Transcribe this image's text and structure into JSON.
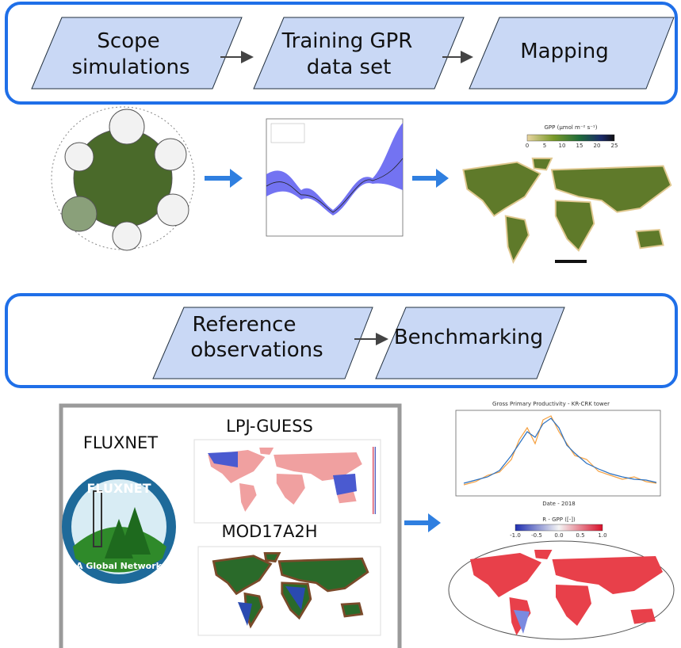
{
  "top_flow": {
    "steps": [
      {
        "lines": [
          "Scope",
          "simulations"
        ]
      },
      {
        "lines": [
          "Training GPR",
          "data set"
        ]
      },
      {
        "lines": [
          "Mapping"
        ]
      }
    ]
  },
  "bottom_flow": {
    "steps": [
      {
        "lines": [
          "Reference",
          "observations"
        ]
      },
      {
        "lines": [
          "Benchmarking"
        ]
      }
    ]
  },
  "gpp_map": {
    "colorbar_title": "GPP (μmol m⁻² s⁻¹)",
    "colorbar_ticks": [
      "0",
      "5",
      "10",
      "15",
      "20",
      "25"
    ]
  },
  "reference_panel": {
    "fluxnet_label": "FLUXNET",
    "logo_title": "FLUXNET",
    "logo_subtitle": "A Global Network",
    "model_1": "LPJ-GUESS",
    "model_2": "MOD17A2H"
  },
  "tower_plot": {
    "title": "Gross Primary Productivity - KR-CRK tower",
    "xlabel": "Date - 2018"
  },
  "correlation_map": {
    "colorbar_title": "R - GPP ([-])",
    "colorbar_ticks": [
      "-1.0",
      "-0.5",
      "0.0",
      "0.5",
      "1.0"
    ]
  }
}
